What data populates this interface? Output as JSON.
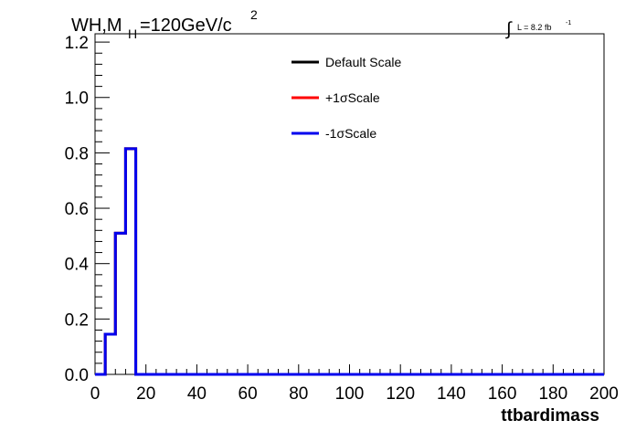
{
  "chart_data": {
    "type": "line",
    "title_parts": {
      "main": "WH,M",
      "subscript": "H",
      "tail": "=120GeV/c",
      "superscript": "2"
    },
    "luminosity": {
      "integral_symbol": "∫",
      "text": "L = 8.2 fb",
      "superscript": "-1"
    },
    "xlabel": "ttbardimass",
    "ylabel": "",
    "xlim": [
      0,
      200
    ],
    "ylim": [
      0,
      1.23
    ],
    "x_ticks": [
      "0",
      "20",
      "40",
      "60",
      "80",
      "100",
      "120",
      "140",
      "160",
      "180",
      "200"
    ],
    "x_tick_values": [
      0,
      20,
      40,
      60,
      80,
      100,
      120,
      140,
      160,
      180,
      200
    ],
    "y_ticks": [
      "0.0",
      "0.2",
      "0.4",
      "0.6",
      "0.8",
      "1.0",
      "1.2"
    ],
    "y_tick_values": [
      0,
      0.2,
      0.4,
      0.6,
      0.8,
      1.0,
      1.2
    ],
    "grid": false,
    "legend_placement": "top-center",
    "bin_edges": [
      0,
      4,
      8,
      12,
      16,
      200
    ],
    "series": [
      {
        "name": "Default Scale",
        "color": "#000000",
        "values": [
          0.0,
          0.145,
          0.51,
          0.815,
          0.0
        ]
      },
      {
        "name": "+1σScale",
        "color": "#ff0000",
        "values": [
          0.0,
          0.145,
          0.51,
          0.815,
          0.0
        ]
      },
      {
        "name": "-1σScale",
        "color": "#0000ee",
        "values": [
          0.0,
          0.145,
          0.51,
          0.815,
          0.0
        ]
      }
    ]
  }
}
